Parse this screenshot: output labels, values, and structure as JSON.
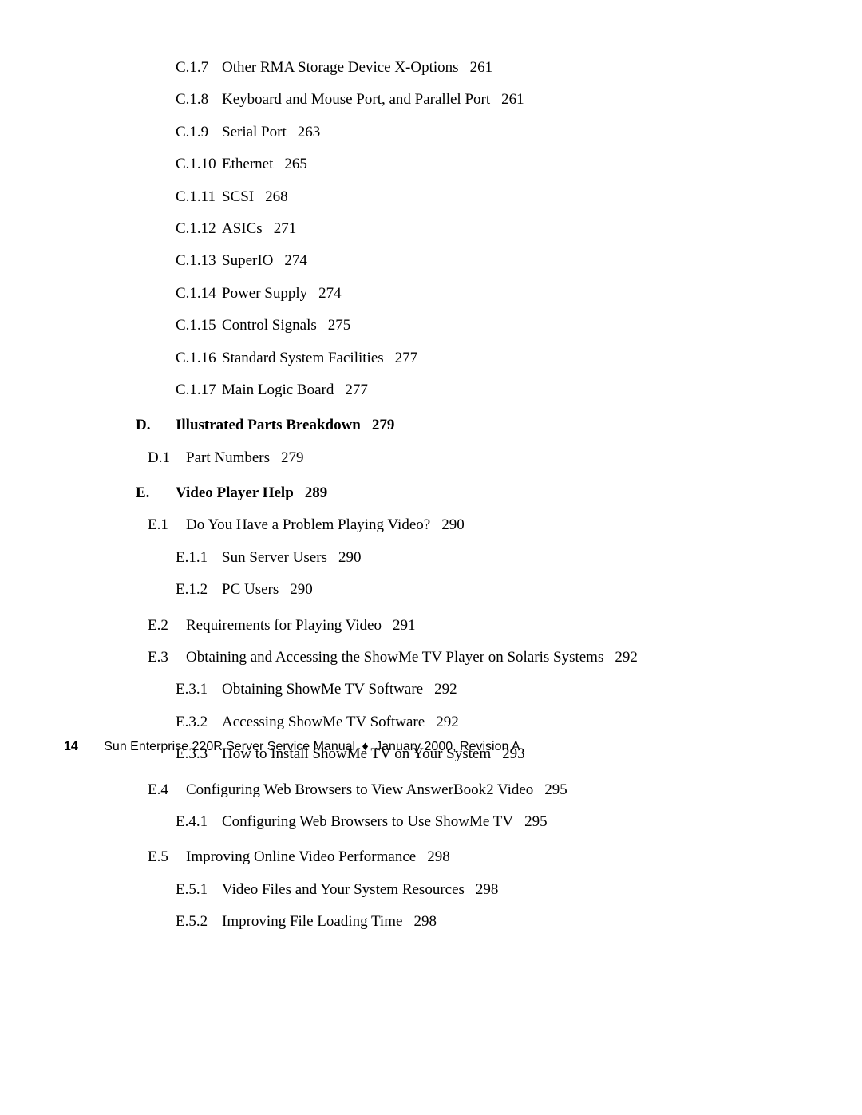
{
  "entries": [
    {
      "level": 3,
      "num": "C.1.7",
      "title": "Other RMA Storage Device X-Options",
      "page": "261"
    },
    {
      "level": 3,
      "num": "C.1.8",
      "title": "Keyboard and Mouse Port, and Parallel Port",
      "page": "261"
    },
    {
      "level": 3,
      "num": "C.1.9",
      "title": "Serial Port",
      "page": "263"
    },
    {
      "level": 3,
      "num": "C.1.10",
      "title": "Ethernet",
      "page": "265"
    },
    {
      "level": 3,
      "num": "C.1.11",
      "title": "SCSI",
      "page": "268"
    },
    {
      "level": 3,
      "num": "C.1.12",
      "title": "ASICs",
      "page": "271"
    },
    {
      "level": 3,
      "num": "C.1.13",
      "title": "SuperIO",
      "page": "274"
    },
    {
      "level": 3,
      "num": "C.1.14",
      "title": "Power Supply",
      "page": "274"
    },
    {
      "level": 3,
      "num": "C.1.15",
      "title": "Control Signals",
      "page": "275"
    },
    {
      "level": 3,
      "num": "C.1.16",
      "title": "Standard System Facilities",
      "page": "277"
    },
    {
      "level": 3,
      "num": "C.1.17",
      "title": "Main Logic Board",
      "page": "277"
    },
    {
      "level": 1,
      "letter": "D.",
      "title": "Illustrated Parts Breakdown",
      "page": "279"
    },
    {
      "level": 2,
      "num": "D.1",
      "title": "Part Numbers",
      "page": "279"
    },
    {
      "level": 1,
      "letter": "E.",
      "title": "Video Player Help",
      "page": "289"
    },
    {
      "level": 2,
      "num": "E.1",
      "title": "Do You Have a Problem Playing Video?",
      "page": "290"
    },
    {
      "level": 3,
      "num": "E.1.1",
      "title": "Sun Server Users",
      "page": "290"
    },
    {
      "level": 3,
      "num": "E.1.2",
      "title": "PC Users",
      "page": "290"
    },
    {
      "level": 2,
      "num": "E.2",
      "title": "Requirements for Playing Video",
      "page": "291"
    },
    {
      "level": 2,
      "num": "E.3",
      "title": "Obtaining and Accessing the ShowMe TV Player on Solaris Systems",
      "page": "292"
    },
    {
      "level": 3,
      "num": "E.3.1",
      "title": "Obtaining ShowMe TV Software",
      "page": "292"
    },
    {
      "level": 3,
      "num": "E.3.2",
      "title": "Accessing ShowMe TV Software",
      "page": "292"
    },
    {
      "level": 3,
      "num": "E.3.3",
      "title": "How to Install ShowMe TV on Your System",
      "page": "293"
    },
    {
      "level": 2,
      "num": "E.4",
      "title": "Configuring Web Browsers to View AnswerBook2 Video",
      "page": "295"
    },
    {
      "level": 3,
      "num": "E.4.1",
      "title": "Configuring Web Browsers to Use ShowMe TV",
      "page": "295"
    },
    {
      "level": 2,
      "num": "E.5",
      "title": "Improving Online Video Performance",
      "page": "298"
    },
    {
      "level": 3,
      "num": "E.5.1",
      "title": "Video Files and Your System Resources",
      "page": "298"
    },
    {
      "level": 3,
      "num": "E.5.2",
      "title": "Improving File Loading Time",
      "page": "298"
    }
  ],
  "footer": {
    "page_number": "14",
    "text_left": "Sun Enterprise 220R Server Service Manual",
    "diamond": "♦",
    "text_right": "January 2000, Revision A"
  }
}
